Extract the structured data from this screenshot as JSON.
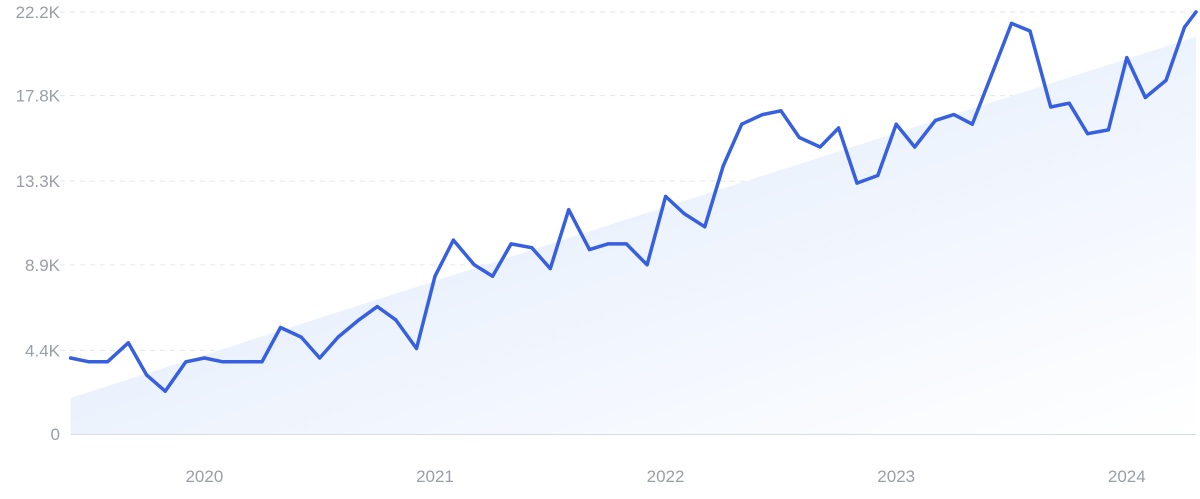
{
  "chart_data": {
    "type": "line",
    "title": "",
    "xlabel": "",
    "ylabel": "",
    "y_ticks": [
      "0",
      "4.4K",
      "8.9K",
      "13.3K",
      "17.8K",
      "22.2K"
    ],
    "y_tick_values": [
      0,
      4400,
      8900,
      13300,
      17800,
      22200
    ],
    "ylim": [
      0,
      22200
    ],
    "x_ticks": [
      "2020",
      "2021",
      "2022",
      "2023",
      "2024"
    ],
    "x_tick_values": [
      2020.0,
      2021.0,
      2022.0,
      2023.0,
      2024.0
    ],
    "xlim": [
      2019.4,
      2024.3
    ],
    "grid": "horizontal dashed",
    "colors": {
      "line": "#3660e0",
      "trend_fill_top": "#dbe7fb",
      "grid": "#e3e6ea",
      "axis": "#d6dde8",
      "tick_text": "#9a9ea6"
    },
    "series": [
      {
        "values": [
          [
            2019.42,
            4000
          ],
          [
            2019.5,
            3800
          ],
          [
            2019.58,
            3800
          ],
          [
            2019.67,
            4800
          ],
          [
            2019.75,
            3100
          ],
          [
            2019.83,
            2250
          ],
          [
            2019.92,
            3800
          ],
          [
            2020.0,
            4000
          ],
          [
            2020.08,
            3800
          ],
          [
            2020.17,
            3800
          ],
          [
            2020.25,
            3800
          ],
          [
            2020.33,
            5600
          ],
          [
            2020.42,
            5100
          ],
          [
            2020.5,
            4000
          ],
          [
            2020.58,
            5100
          ],
          [
            2020.67,
            6000
          ],
          [
            2020.75,
            6700
          ],
          [
            2020.83,
            6000
          ],
          [
            2020.92,
            4500
          ],
          [
            2021.0,
            8300
          ],
          [
            2021.08,
            10200
          ],
          [
            2021.17,
            8900
          ],
          [
            2021.25,
            8300
          ],
          [
            2021.33,
            10000
          ],
          [
            2021.42,
            9800
          ],
          [
            2021.5,
            8700
          ],
          [
            2021.58,
            11800
          ],
          [
            2021.67,
            9700
          ],
          [
            2021.75,
            10000
          ],
          [
            2021.83,
            10000
          ],
          [
            2021.92,
            8900
          ],
          [
            2022.0,
            12500
          ],
          [
            2022.08,
            11600
          ],
          [
            2022.17,
            10900
          ],
          [
            2022.25,
            14100
          ],
          [
            2022.33,
            16300
          ],
          [
            2022.42,
            16800
          ],
          [
            2022.5,
            17000
          ],
          [
            2022.58,
            15600
          ],
          [
            2022.67,
            15100
          ],
          [
            2022.75,
            16100
          ],
          [
            2022.83,
            13200
          ],
          [
            2022.92,
            13600
          ],
          [
            2023.0,
            16300
          ],
          [
            2023.08,
            15100
          ],
          [
            2023.17,
            16500
          ],
          [
            2023.25,
            16800
          ],
          [
            2023.33,
            16300
          ],
          [
            2023.42,
            19100
          ],
          [
            2023.5,
            21600
          ],
          [
            2023.58,
            21200
          ],
          [
            2023.67,
            17200
          ],
          [
            2023.75,
            17400
          ],
          [
            2023.83,
            15800
          ],
          [
            2023.92,
            16000
          ],
          [
            2024.0,
            19800
          ],
          [
            2024.08,
            17700
          ],
          [
            2024.17,
            18600
          ],
          [
            2024.25,
            21400
          ],
          [
            2024.3,
            22200
          ]
        ]
      }
    ],
    "trend_area": {
      "start": [
        2019.42,
        1900
      ],
      "end": [
        2024.3,
        20900
      ]
    }
  }
}
